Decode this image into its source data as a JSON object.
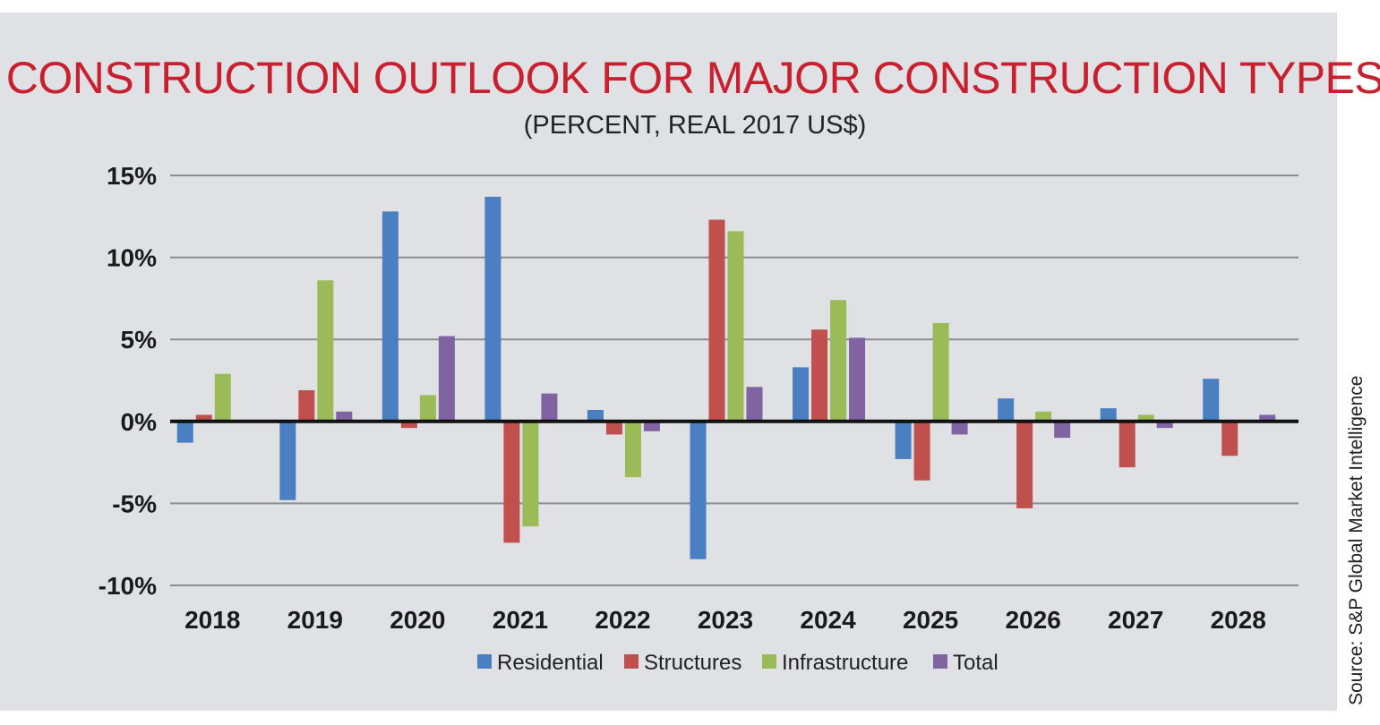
{
  "title": "CONSTRUCTION OUTLOOK FOR MAJOR CONSTRUCTION TYPES",
  "subtitle": "(PERCENT, REAL 2017 US$)",
  "source": "Source: S&P Global Market Intelligence",
  "chart_data": {
    "type": "bar",
    "title": "CONSTRUCTION OUTLOOK FOR MAJOR CONSTRUCTION TYPES",
    "subtitle": "(PERCENT, REAL 2017 US$)",
    "xlabel": "",
    "ylabel": "",
    "ylim": [
      -10,
      15
    ],
    "yticks": [
      15,
      10,
      5,
      0,
      -5,
      -10
    ],
    "ytick_labels": [
      "15%",
      "10%",
      "5%",
      "0%",
      "-5%",
      "-10%"
    ],
    "grid": true,
    "legend_position": "bottom",
    "categories": [
      "2018",
      "2019",
      "2020",
      "2021",
      "2022",
      "2023",
      "2024",
      "2025",
      "2026",
      "2027",
      "2028"
    ],
    "series": [
      {
        "name": "Residential",
        "color": "#4a7fc1",
        "values": [
          -1.3,
          -4.8,
          12.8,
          13.7,
          0.7,
          -8.4,
          3.3,
          -2.3,
          1.4,
          0.8,
          2.6
        ]
      },
      {
        "name": "Structures",
        "color": "#c0504d",
        "values": [
          0.4,
          1.9,
          -0.4,
          -7.4,
          -0.8,
          12.3,
          5.6,
          -3.6,
          -5.3,
          -2.8,
          -2.1
        ]
      },
      {
        "name": "Infrastructure",
        "color": "#9bbb59",
        "values": [
          2.9,
          8.6,
          1.6,
          -6.4,
          -3.4,
          11.6,
          7.4,
          6.0,
          0.6,
          0.4,
          0.0
        ]
      },
      {
        "name": "Total",
        "color": "#8064a2",
        "values": [
          0.0,
          0.6,
          5.2,
          1.7,
          -0.6,
          2.1,
          5.1,
          -0.8,
          -1.0,
          -0.4,
          0.4
        ]
      }
    ]
  }
}
